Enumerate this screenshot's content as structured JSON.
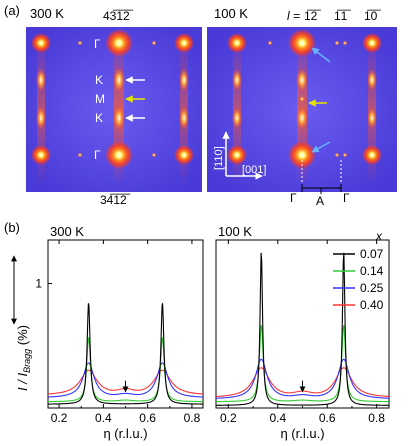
{
  "panel_a": {
    "label": "(a)",
    "left_map": {
      "temperature": "300 K",
      "top_index": "43̅1̅2̅",
      "bottom_index": "34̅1̅2̅",
      "gamma_top": "Γ",
      "gamma_bottom": "Γ",
      "label_K_upper": "K",
      "label_M": "M",
      "label_K_lower": "K",
      "background_color": "#5a4ae6",
      "peak_color": "#ff3b1e",
      "arrow_colors": {
        "K": "#ffffff",
        "M": "#e6e600"
      }
    },
    "right_map": {
      "temperature": "100 K",
      "l_label": "l = ",
      "l_values": [
        "1̅2̅",
        "1̅1̅",
        "1̅0̅"
      ],
      "axis_110": "[110]",
      "axis_001": "[001]",
      "gamma_left": "Γ",
      "gamma_right": "Γ",
      "label_A": "A",
      "arrow_colors": {
        "superlattice": "#e6e600",
        "diffuse": "#66b3ff"
      }
    }
  },
  "panel_b": {
    "label": "(b)",
    "ylabel": "I / I_Bragg (%)",
    "y_tick_label": "1",
    "legend_title": "x",
    "legend_entries": [
      "0.07",
      "0.14",
      "0.25",
      "0.40"
    ]
  },
  "chart_data": [
    {
      "type": "line",
      "title": "300 K",
      "xlabel": "η (r.l.u.)",
      "ylabel": "I / I_Bragg (%)",
      "xlim": [
        0.15,
        0.85
      ],
      "ylim": [
        0,
        1.35
      ],
      "x_ticks": [
        "0.2",
        "0.4",
        "0.6",
        "0.8"
      ],
      "y_ticks": [
        "1"
      ],
      "annotation": "arrow at η = 0.5",
      "series": [
        {
          "name": "0.07",
          "color": "#000000",
          "peak_height": 0.82,
          "peak_width": 0.008,
          "baseline": 0.03,
          "bump": 0.0
        },
        {
          "name": "0.14",
          "color": "#33cc33",
          "peak_height": 0.52,
          "peak_width": 0.01,
          "baseline": 0.05,
          "bump": 0.01
        },
        {
          "name": "0.25",
          "color": "#3333ff",
          "peak_height": 0.28,
          "peak_width": 0.03,
          "baseline": 0.08,
          "bump": 0.02
        },
        {
          "name": "0.40",
          "color": "#ff3333",
          "peak_height": 0.2,
          "peak_width": 0.045,
          "baseline": 0.1,
          "bump": 0.03
        }
      ]
    },
    {
      "type": "line",
      "title": "100 K",
      "xlabel": "η (r.l.u.)",
      "ylabel": "",
      "xlim": [
        0.15,
        0.85
      ],
      "ylim": [
        0,
        1.35
      ],
      "x_ticks": [
        "0.2",
        "0.4",
        "0.6",
        "0.8"
      ],
      "annotation": "arrow at η = 0.5",
      "series": [
        {
          "name": "0.07",
          "color": "#000000",
          "peak_height": 1.25,
          "peak_width": 0.006,
          "baseline": 0.02,
          "bump": 0.0
        },
        {
          "name": "0.14",
          "color": "#33cc33",
          "peak_height": 0.62,
          "peak_width": 0.009,
          "baseline": 0.05,
          "bump": 0.01
        },
        {
          "name": "0.25",
          "color": "#3333ff",
          "peak_height": 0.32,
          "peak_width": 0.028,
          "baseline": 0.07,
          "bump": 0.02
        },
        {
          "name": "0.40",
          "color": "#ff3333",
          "peak_height": 0.24,
          "peak_width": 0.04,
          "baseline": 0.08,
          "bump": 0.03
        }
      ]
    }
  ]
}
